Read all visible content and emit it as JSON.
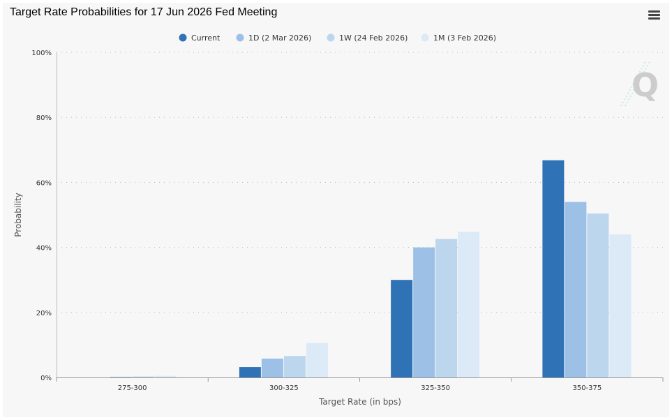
{
  "chart_data": {
    "type": "bar",
    "title": "Target Rate Probabilities for 17 Jun 2026 Fed Meeting",
    "xlabel": "Target Rate (in bps)",
    "ylabel": "Probability",
    "categories": [
      "275-300",
      "300-325",
      "325-350",
      "350-375"
    ],
    "ylim": [
      0,
      100
    ],
    "yticks": [
      "0%",
      "20%",
      "40%",
      "60%",
      "80%",
      "100%"
    ],
    "yticks_values": [
      0,
      20,
      40,
      60,
      80,
      100
    ],
    "grid": true,
    "legend": "top-center",
    "series": [
      {
        "name": "Current",
        "color": "#2f73b6",
        "values": [
          0.0,
          3.2,
          30.0,
          66.8
        ]
      },
      {
        "name": "1D (2 Mar 2026)",
        "color": "#9dc0e6",
        "values": [
          0.2,
          5.8,
          40.0,
          54.0
        ]
      },
      {
        "name": "1W (24 Feb 2026)",
        "color": "#bcd6ee",
        "values": [
          0.3,
          6.6,
          42.6,
          50.4
        ]
      },
      {
        "name": "1M (3 Feb 2026)",
        "color": "#dce9f6",
        "values": [
          0.5,
          10.6,
          44.8,
          44.0
        ]
      }
    ]
  },
  "menu_icon": "hamburger-menu-icon",
  "watermark_icon": "q-logo-icon"
}
